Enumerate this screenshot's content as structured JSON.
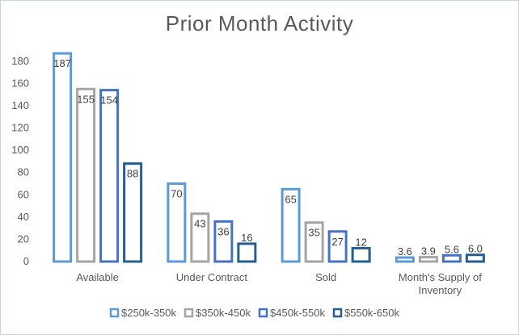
{
  "chart_data": {
    "type": "bar",
    "title": "Prior Month Activity",
    "categories": [
      "Available",
      "Under Contract",
      "Sold",
      "Month's Supply of Inventory"
    ],
    "series": [
      {
        "name": "$250k-350k",
        "values": [
          187,
          70,
          65,
          3.6
        ],
        "color": "#5b9bd5"
      },
      {
        "name": "$350k-450k",
        "values": [
          155,
          43,
          35,
          3.9
        ],
        "color": "#a5a5a5"
      },
      {
        "name": "$450k-550k",
        "values": [
          154,
          36,
          27,
          5.6
        ],
        "color": "#4472c4"
      },
      {
        "name": "$550k-650k",
        "values": [
          88,
          16,
          12,
          6.0
        ],
        "color": "#255e91"
      }
    ],
    "data_labels": [
      [
        "187",
        "70",
        "65",
        "3.6"
      ],
      [
        "155",
        "43",
        "35",
        "3.9"
      ],
      [
        "154",
        "36",
        "27",
        "5.6"
      ],
      [
        "88",
        "16",
        "12",
        "6.0"
      ]
    ],
    "ylim": [
      0,
      190
    ],
    "yticks": [
      0,
      20,
      40,
      60,
      80,
      100,
      120,
      140,
      160,
      180
    ],
    "xlabel": "",
    "ylabel": "",
    "grid": false,
    "legend_position": "bottom"
  }
}
